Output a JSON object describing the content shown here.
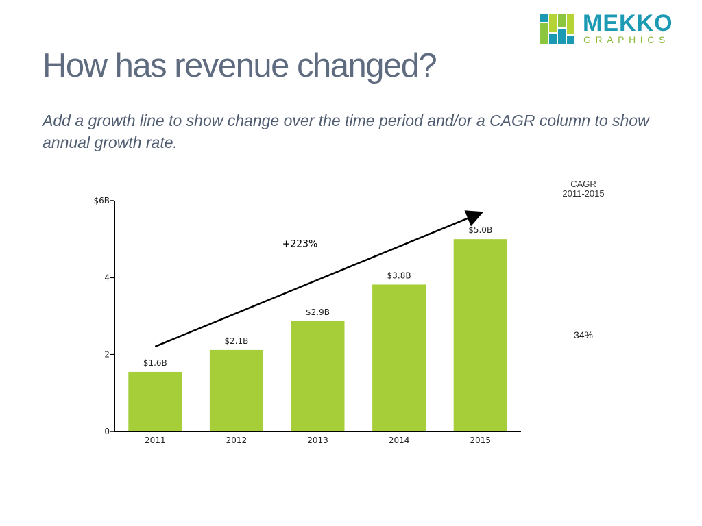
{
  "title": "How has revenue changed?",
  "subtitle": "Add a growth line to show change over the time period and/or a CAGR column to show annual growth rate.",
  "logo": {
    "top_word": "MEKKO",
    "bottom_word": "GRAPHICS",
    "colors": {
      "green": "#8cc63f",
      "teal": "#1d9ab3",
      "lime": "#b5d334"
    }
  },
  "cagr": {
    "title": "CAGR",
    "period": "2011-2015",
    "value": "34%"
  },
  "colors": {
    "bar": "#a6ce39",
    "axis": "#000000",
    "title": "#5f6b7f"
  },
  "chart_data": {
    "type": "bar",
    "categories": [
      "2011",
      "2012",
      "2013",
      "2014",
      "2015"
    ],
    "values": [
      1.55,
      2.12,
      2.87,
      3.82,
      5.0
    ],
    "data_labels": [
      "$1.6B",
      "$2.1B",
      "$2.9B",
      "$3.8B",
      "$5.0B"
    ],
    "y_ticks": [
      {
        "value": 0,
        "label": "0"
      },
      {
        "value": 2,
        "label": "2"
      },
      {
        "value": 4,
        "label": "4"
      },
      {
        "value": 6,
        "label": "$6B"
      }
    ],
    "ylim": [
      0,
      6
    ],
    "growth_line": {
      "label": "+223%",
      "from": "2011",
      "to": "2015"
    },
    "xlabel": "",
    "ylabel": "",
    "grid": false,
    "legend": "none"
  }
}
